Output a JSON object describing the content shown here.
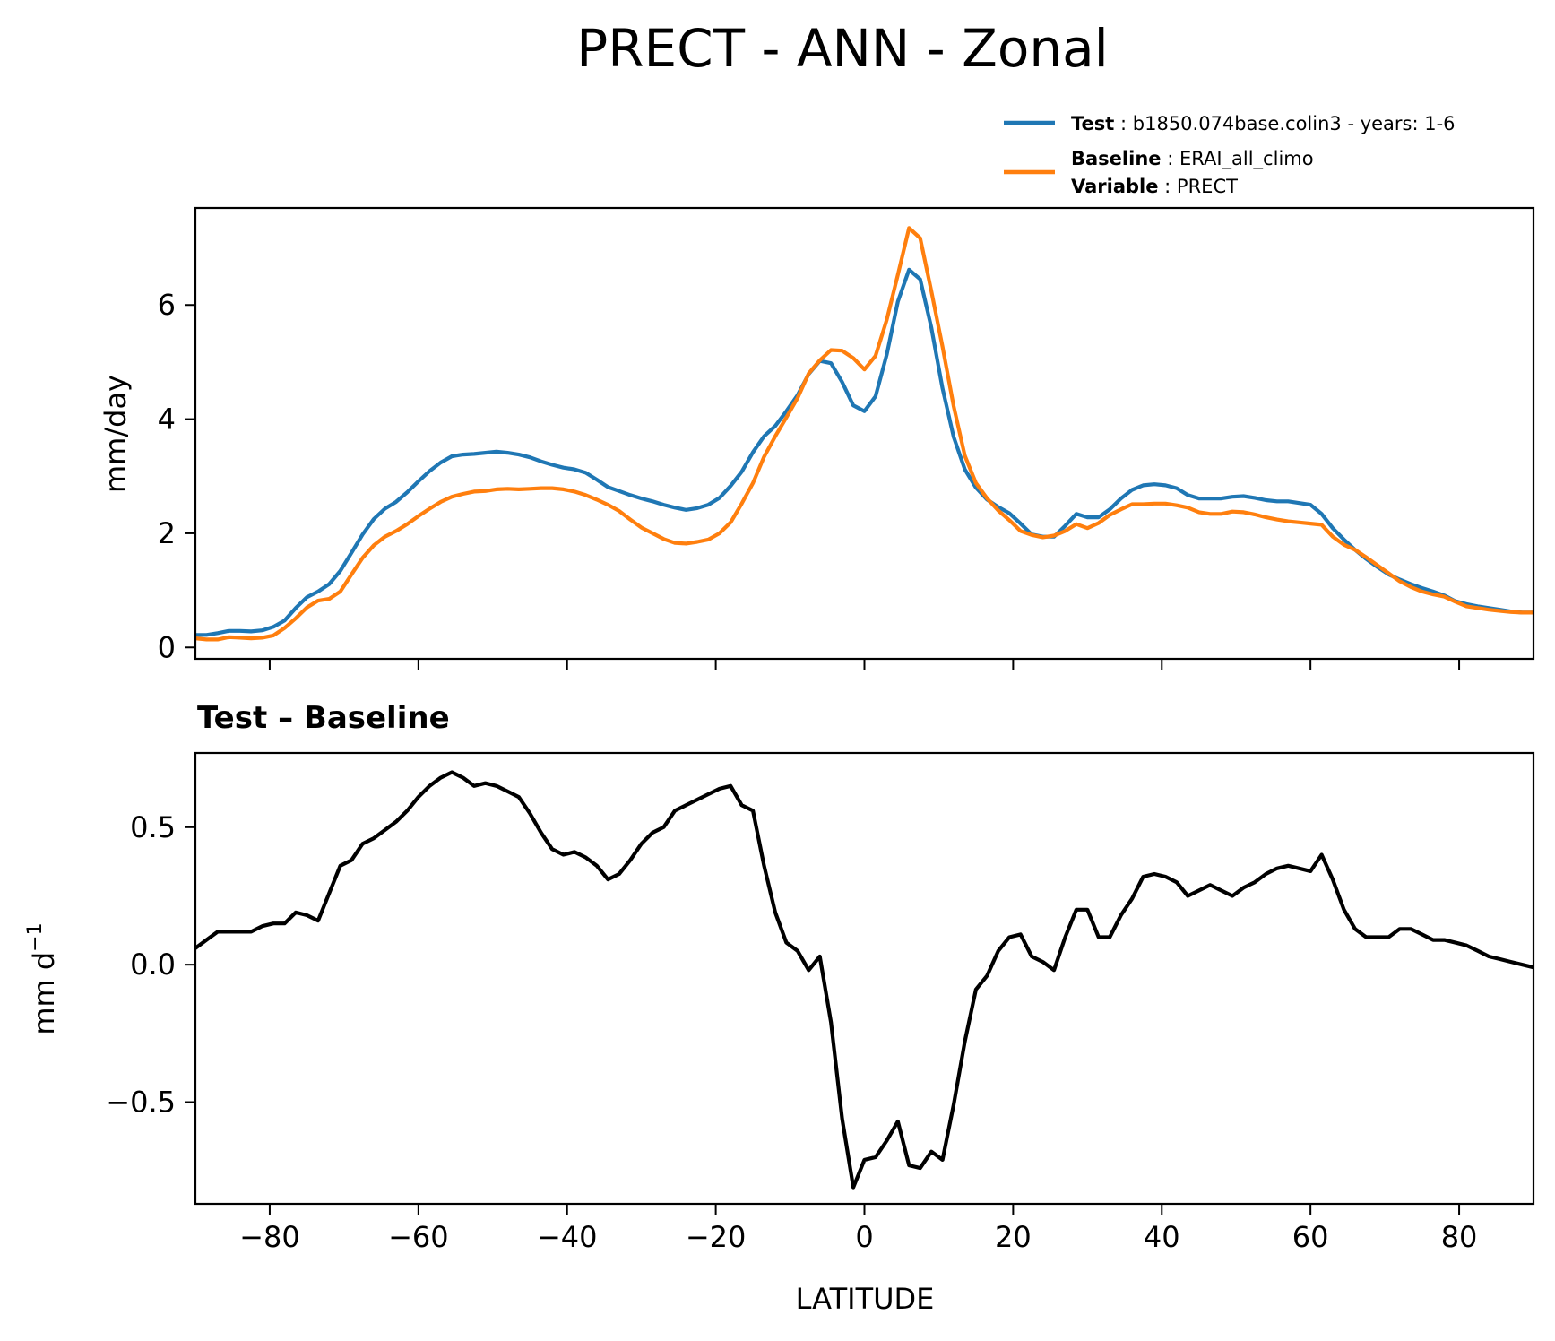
{
  "chart_data": [
    {
      "type": "line",
      "title": "PRECT - ANN - Zonal",
      "xlabel": "",
      "ylabel": "mm/day",
      "xlim": [
        -90,
        90
      ],
      "ylim": [
        -0.2,
        7.7
      ],
      "xticks": [
        -80,
        -60,
        -40,
        -20,
        0,
        20,
        40,
        60,
        80
      ],
      "xtick_labels_visible": false,
      "yticks": [
        0,
        2,
        4,
        6
      ],
      "ytick_labels": [
        "0",
        "2",
        "4",
        "6"
      ],
      "legend": {
        "position": "above-top-right",
        "entries": [
          {
            "series": "Test",
            "key": "Test",
            "text": "b1850.074base.colin3 - years: 1-6"
          },
          {
            "series": "Baseline",
            "key": "Baseline",
            "text": "ERAI_all_climo"
          },
          {
            "series": "",
            "key": "Variable",
            "text": "PRECT"
          }
        ]
      },
      "series": [
        {
          "name": "Test",
          "color": "#1f77b4",
          "x": [
            -90,
            -88.5,
            -87,
            -85.5,
            -84,
            -82.5,
            -81,
            -79.5,
            -78,
            -76.5,
            -75,
            -73.5,
            -72,
            -70.5,
            -69,
            -67.5,
            -66,
            -64.5,
            -63,
            -61.5,
            -60,
            -58.5,
            -57,
            -55.5,
            -54,
            -52.5,
            -51,
            -49.5,
            -48,
            -46.5,
            -45,
            -43.5,
            -42,
            -40.5,
            -39,
            -37.5,
            -36,
            -34.5,
            -33,
            -31.5,
            -30,
            -28.5,
            -27,
            -25.5,
            -24,
            -22.5,
            -21,
            -19.5,
            -18,
            -16.5,
            -15,
            -13.5,
            -12,
            -10.5,
            -9,
            -7.5,
            -6,
            -4.5,
            -3,
            -1.5,
            0,
            1.5,
            3,
            4.5,
            6,
            7.5,
            9,
            10.5,
            12,
            13.5,
            15,
            16.5,
            18,
            19.5,
            21,
            22.5,
            24,
            25.5,
            27,
            28.5,
            30,
            31.5,
            33,
            34.5,
            36,
            37.5,
            39,
            40.5,
            42,
            43.5,
            45,
            46.5,
            48,
            49.5,
            51,
            52.5,
            54,
            55.5,
            57,
            58.5,
            60,
            61.5,
            63,
            64.5,
            66,
            67.5,
            69,
            70.5,
            72,
            73.5,
            75,
            76.5,
            78,
            79.5,
            81,
            82.5,
            84,
            85.5,
            87,
            88.5,
            90
          ],
          "y": [
            0.22,
            0.22,
            0.25,
            0.29,
            0.29,
            0.28,
            0.3,
            0.36,
            0.47,
            0.69,
            0.88,
            0.98,
            1.11,
            1.34,
            1.66,
            1.98,
            2.25,
            2.43,
            2.55,
            2.72,
            2.91,
            3.09,
            3.24,
            3.35,
            3.38,
            3.39,
            3.41,
            3.43,
            3.41,
            3.38,
            3.33,
            3.26,
            3.2,
            3.15,
            3.12,
            3.06,
            2.94,
            2.81,
            2.74,
            2.67,
            2.61,
            2.56,
            2.5,
            2.45,
            2.41,
            2.44,
            2.5,
            2.62,
            2.83,
            3.08,
            3.42,
            3.7,
            3.88,
            4.14,
            4.42,
            4.79,
            5.02,
            4.98,
            4.65,
            4.24,
            4.14,
            4.4,
            5.13,
            6.06,
            6.62,
            6.45,
            5.6,
            4.54,
            3.69,
            3.12,
            2.8,
            2.59,
            2.46,
            2.35,
            2.17,
            1.98,
            1.94,
            1.94,
            2.13,
            2.34,
            2.28,
            2.28,
            2.42,
            2.61,
            2.76,
            2.84,
            2.86,
            2.84,
            2.79,
            2.67,
            2.61,
            2.61,
            2.61,
            2.64,
            2.65,
            2.62,
            2.58,
            2.56,
            2.56,
            2.53,
            2.5,
            2.34,
            2.09,
            1.89,
            1.71,
            1.55,
            1.41,
            1.28,
            1.19,
            1.11,
            1.04,
            0.98,
            0.91,
            0.81,
            0.76,
            0.72,
            0.69,
            0.66,
            0.63,
            0.61,
            0.61
          ]
        },
        {
          "name": "Baseline",
          "color": "#ff7f0e",
          "x": [
            -90,
            -88.5,
            -87,
            -85.5,
            -84,
            -82.5,
            -81,
            -79.5,
            -78,
            -76.5,
            -75,
            -73.5,
            -72,
            -70.5,
            -69,
            -67.5,
            -66,
            -64.5,
            -63,
            -61.5,
            -60,
            -58.5,
            -57,
            -55.5,
            -54,
            -52.5,
            -51,
            -49.5,
            -48,
            -46.5,
            -45,
            -43.5,
            -42,
            -40.5,
            -39,
            -37.5,
            -36,
            -34.5,
            -33,
            -31.5,
            -30,
            -28.5,
            -27,
            -25.5,
            -24,
            -22.5,
            -21,
            -19.5,
            -18,
            -16.5,
            -15,
            -13.5,
            -12,
            -10.5,
            -9,
            -7.5,
            -6,
            -4.5,
            -3,
            -1.5,
            0,
            1.5,
            3,
            4.5,
            6,
            7.5,
            9,
            10.5,
            12,
            13.5,
            15,
            16.5,
            18,
            19.5,
            21,
            22.5,
            24,
            25.5,
            27,
            28.5,
            30,
            31.5,
            33,
            34.5,
            36,
            37.5,
            39,
            40.5,
            42,
            43.5,
            45,
            46.5,
            48,
            49.5,
            51,
            52.5,
            54,
            55.5,
            57,
            58.5,
            60,
            61.5,
            63,
            64.5,
            66,
            67.5,
            69,
            70.5,
            72,
            73.5,
            75,
            76.5,
            78,
            79.5,
            81,
            82.5,
            84,
            85.5,
            87,
            88.5,
            90
          ],
          "y": [
            0.16,
            0.14,
            0.14,
            0.18,
            0.17,
            0.16,
            0.17,
            0.21,
            0.34,
            0.51,
            0.7,
            0.82,
            0.85,
            0.98,
            1.28,
            1.57,
            1.79,
            1.94,
            2.04,
            2.16,
            2.3,
            2.43,
            2.55,
            2.64,
            2.69,
            2.73,
            2.74,
            2.77,
            2.78,
            2.77,
            2.78,
            2.79,
            2.79,
            2.77,
            2.73,
            2.67,
            2.59,
            2.5,
            2.39,
            2.24,
            2.1,
            2.0,
            1.9,
            1.83,
            1.82,
            1.85,
            1.89,
            2.0,
            2.19,
            2.52,
            2.88,
            3.34,
            3.7,
            4.03,
            4.37,
            4.8,
            5.03,
            5.21,
            5.2,
            5.07,
            4.87,
            5.11,
            5.74,
            6.53,
            7.35,
            7.17,
            6.24,
            5.27,
            4.23,
            3.36,
            2.88,
            2.61,
            2.4,
            2.23,
            2.04,
            1.97,
            1.93,
            1.96,
            2.04,
            2.16,
            2.09,
            2.18,
            2.32,
            2.42,
            2.51,
            2.51,
            2.52,
            2.52,
            2.49,
            2.45,
            2.37,
            2.34,
            2.34,
            2.38,
            2.37,
            2.33,
            2.28,
            2.24,
            2.21,
            2.19,
            2.17,
            2.15,
            1.94,
            1.8,
            1.71,
            1.58,
            1.44,
            1.3,
            1.16,
            1.06,
            0.98,
            0.93,
            0.89,
            0.8,
            0.72,
            0.69,
            0.66,
            0.64,
            0.62,
            0.61,
            0.61
          ]
        }
      ]
    },
    {
      "type": "line",
      "title": "Test – Baseline",
      "xlabel": "LATITUDE",
      "ylabel": "mm d",
      "ylabel_sup": "−1",
      "xlim": [
        -90,
        90
      ],
      "ylim": [
        -0.87,
        0.77
      ],
      "xticks": [
        -80,
        -60,
        -40,
        -20,
        0,
        20,
        40,
        60,
        80
      ],
      "xtick_labels": [
        "−80",
        "−60",
        "−40",
        "−20",
        "0",
        "20",
        "40",
        "60",
        "80"
      ],
      "yticks": [
        -0.5,
        0,
        0.5
      ],
      "ytick_labels": [
        "−0.5",
        "0.0",
        "0.5"
      ],
      "series": [
        {
          "name": "Test – Baseline",
          "color": "#000000",
          "x": [
            -90,
            -88.5,
            -87,
            -85.5,
            -84,
            -82.5,
            -81,
            -79.5,
            -78,
            -76.5,
            -75,
            -73.5,
            -72,
            -70.5,
            -69,
            -67.5,
            -66,
            -64.5,
            -63,
            -61.5,
            -60,
            -58.5,
            -57,
            -55.5,
            -54,
            -52.5,
            -51,
            -49.5,
            -48,
            -46.5,
            -45,
            -43.5,
            -42,
            -40.5,
            -39,
            -37.5,
            -36,
            -34.5,
            -33,
            -31.5,
            -30,
            -28.5,
            -27,
            -25.5,
            -24,
            -22.5,
            -21,
            -19.5,
            -18,
            -16.5,
            -15,
            -13.5,
            -12,
            -10.5,
            -9,
            -7.5,
            -6,
            -4.5,
            -3,
            -1.5,
            0,
            1.5,
            3,
            4.5,
            6,
            7.5,
            9,
            10.5,
            12,
            13.5,
            15,
            16.5,
            18,
            19.5,
            21,
            22.5,
            24,
            25.5,
            27,
            28.5,
            30,
            31.5,
            33,
            34.5,
            36,
            37.5,
            39,
            40.5,
            42,
            43.5,
            45,
            46.5,
            48,
            49.5,
            51,
            52.5,
            54,
            55.5,
            57,
            58.5,
            60,
            61.5,
            63,
            64.5,
            66,
            67.5,
            69,
            70.5,
            72,
            73.5,
            75,
            76.5,
            78,
            79.5,
            81,
            82.5,
            84,
            85.5,
            87,
            88.5,
            90
          ],
          "y": [
            0.06,
            0.09,
            0.12,
            0.12,
            0.12,
            0.12,
            0.14,
            0.15,
            0.15,
            0.19,
            0.18,
            0.16,
            0.26,
            0.36,
            0.38,
            0.44,
            0.46,
            0.49,
            0.52,
            0.56,
            0.61,
            0.65,
            0.68,
            0.7,
            0.68,
            0.65,
            0.66,
            0.65,
            0.63,
            0.61,
            0.55,
            0.48,
            0.42,
            0.4,
            0.41,
            0.39,
            0.36,
            0.31,
            0.33,
            0.38,
            0.44,
            0.48,
            0.5,
            0.56,
            0.58,
            0.6,
            0.62,
            0.64,
            0.65,
            0.58,
            0.56,
            0.36,
            0.19,
            0.08,
            0.05,
            -0.02,
            0.03,
            -0.21,
            -0.56,
            -0.81,
            -0.71,
            -0.7,
            -0.64,
            -0.57,
            -0.73,
            -0.74,
            -0.68,
            -0.71,
            -0.51,
            -0.28,
            -0.09,
            -0.04,
            0.05,
            0.1,
            0.11,
            0.03,
            0.01,
            -0.02,
            0.1,
            0.2,
            0.2,
            0.1,
            0.1,
            0.18,
            0.24,
            0.32,
            0.33,
            0.32,
            0.3,
            0.25,
            0.27,
            0.29,
            0.27,
            0.25,
            0.28,
            0.3,
            0.33,
            0.35,
            0.36,
            0.35,
            0.34,
            0.4,
            0.31,
            0.2,
            0.13,
            0.1,
            0.1,
            0.1,
            0.13,
            0.13,
            0.11,
            0.09,
            0.09,
            0.08,
            0.07,
            0.05,
            0.03,
            0.02,
            0.01,
            0.0,
            -0.01
          ]
        }
      ]
    }
  ]
}
